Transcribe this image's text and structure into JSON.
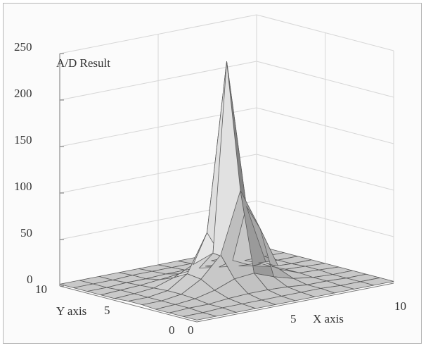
{
  "chart_data": {
    "type": "surface",
    "title": "",
    "zlabel": "A/D Result",
    "xlabel": "X axis",
    "ylabel": "Y axis",
    "x_ticks": [
      "0",
      "5",
      "10"
    ],
    "y_ticks": [
      "0",
      "5",
      "10"
    ],
    "z_ticks": [
      "0",
      "50",
      "100",
      "150",
      "200",
      "250"
    ],
    "xlim": [
      0,
      10
    ],
    "ylim": [
      0,
      10
    ],
    "zlim": [
      0,
      250
    ],
    "grid": true,
    "x": [
      0,
      1,
      2,
      3,
      4,
      5,
      6,
      7,
      8,
      9,
      10
    ],
    "y": [
      0,
      1,
      2,
      3,
      4,
      5,
      6,
      7,
      8,
      9,
      10
    ],
    "z": [
      [
        2,
        2,
        2,
        2,
        2,
        2,
        2,
        2,
        2,
        2,
        2
      ],
      [
        2,
        2,
        3,
        3,
        3,
        3,
        3,
        3,
        2,
        2,
        2
      ],
      [
        2,
        3,
        3,
        5,
        6,
        6,
        5,
        3,
        3,
        2,
        2
      ],
      [
        2,
        3,
        5,
        10,
        18,
        20,
        12,
        6,
        3,
        2,
        2
      ],
      [
        3,
        3,
        6,
        18,
        40,
        105,
        60,
        12,
        4,
        3,
        2
      ],
      [
        3,
        3,
        6,
        20,
        60,
        240,
        80,
        15,
        4,
        3,
        2
      ],
      [
        2,
        3,
        5,
        12,
        22,
        30,
        18,
        8,
        3,
        2,
        2
      ],
      [
        2,
        3,
        4,
        6,
        8,
        10,
        7,
        4,
        3,
        2,
        2
      ],
      [
        2,
        2,
        3,
        3,
        4,
        4,
        4,
        3,
        2,
        2,
        2
      ],
      [
        2,
        2,
        2,
        3,
        3,
        3,
        3,
        2,
        2,
        2,
        2
      ],
      [
        2,
        2,
        2,
        2,
        2,
        2,
        2,
        2,
        2,
        2,
        2
      ]
    ],
    "colors": {
      "face": "#c9c9c9",
      "edge": "#5a5a5a",
      "grid": "#d6d6d6",
      "axis": "#777777"
    }
  }
}
